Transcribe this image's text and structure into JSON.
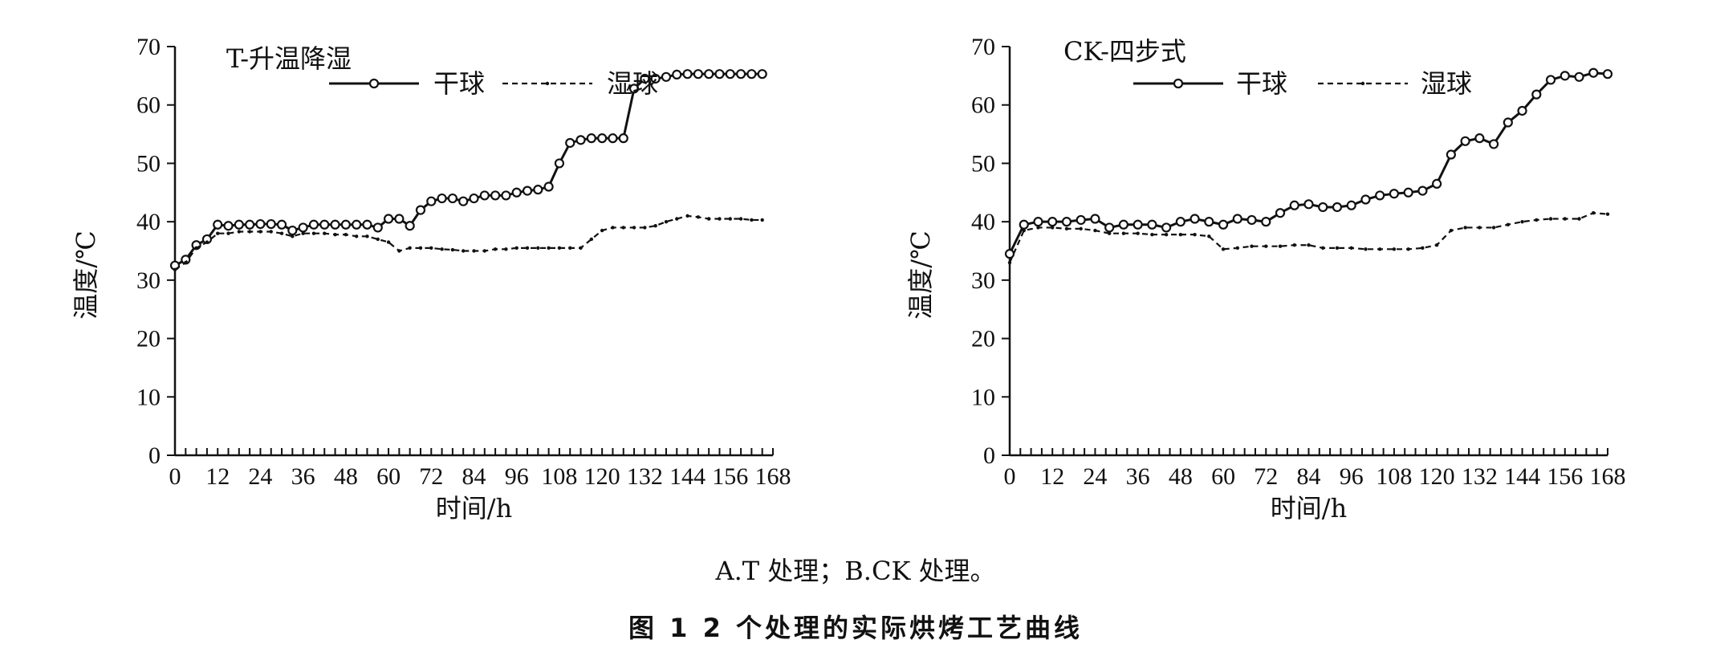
{
  "chart_data": [
    {
      "type": "line",
      "title": "T-升温降湿",
      "xlabel": "时间/h",
      "ylabel": "温度/℃",
      "xlim": [
        0,
        168
      ],
      "ylim": [
        0,
        70
      ],
      "xticks": [
        0,
        12,
        24,
        36,
        48,
        60,
        72,
        84,
        96,
        108,
        120,
        132,
        144,
        156,
        168
      ],
      "yticks": [
        0,
        10,
        20,
        30,
        40,
        50,
        60,
        70
      ],
      "legend_position": "top",
      "series": [
        {
          "name": "干球",
          "style": "solid-circle",
          "x": [
            0,
            3,
            6,
            9,
            12,
            15,
            18,
            21,
            24,
            27,
            30,
            33,
            36,
            39,
            42,
            45,
            48,
            51,
            54,
            57,
            60,
            63,
            66,
            69,
            72,
            75,
            78,
            81,
            84,
            87,
            90,
            93,
            96,
            99,
            102,
            105,
            108,
            111,
            114,
            117,
            120,
            123,
            126,
            129,
            132,
            135,
            138,
            141,
            144,
            147,
            150,
            153,
            156,
            159,
            162,
            165
          ],
          "y": [
            32.5,
            33.5,
            36,
            37,
            39.5,
            39.3,
            39.5,
            39.5,
            39.6,
            39.6,
            39.5,
            38.5,
            39,
            39.5,
            39.5,
            39.5,
            39.5,
            39.5,
            39.5,
            39,
            40.5,
            40.5,
            39.3,
            42,
            43.5,
            44,
            44,
            43.5,
            44,
            44.5,
            44.5,
            44.5,
            45,
            45.3,
            45.5,
            46,
            50,
            53.5,
            54,
            54.3,
            54.3,
            54.3,
            54.3,
            62.8,
            64.5,
            64.5,
            64.8,
            65.2,
            65.3,
            65.3,
            65.3,
            65.3,
            65.3,
            65.3,
            65.3,
            65.3
          ]
        },
        {
          "name": "湿球",
          "style": "dashed",
          "x": [
            0,
            3,
            6,
            9,
            12,
            15,
            18,
            21,
            24,
            27,
            30,
            33,
            36,
            39,
            42,
            45,
            48,
            51,
            54,
            57,
            60,
            63,
            66,
            69,
            72,
            75,
            78,
            81,
            84,
            87,
            90,
            93,
            96,
            99,
            102,
            105,
            108,
            111,
            114,
            117,
            120,
            123,
            126,
            129,
            132,
            135,
            138,
            141,
            144,
            147,
            150,
            153,
            156,
            159,
            162,
            165
          ],
          "y": [
            31.8,
            33,
            35.5,
            36.5,
            38,
            38,
            38.3,
            38.3,
            38.3,
            38.3,
            38,
            37.5,
            38,
            38,
            38,
            37.8,
            37.8,
            37.5,
            37.5,
            37,
            36.5,
            35,
            35.5,
            35.5,
            35.5,
            35.3,
            35.2,
            35,
            35,
            35,
            35.3,
            35.3,
            35.5,
            35.5,
            35.5,
            35.5,
            35.5,
            35.5,
            35.5,
            37,
            38.5,
            39,
            39,
            39,
            39,
            39.3,
            40,
            40.5,
            41,
            40.8,
            40.5,
            40.5,
            40.5,
            40.5,
            40.3,
            40.3
          ]
        }
      ]
    },
    {
      "type": "line",
      "title": "CK-四步式",
      "xlabel": "时间/h",
      "ylabel": "温度/℃",
      "xlim": [
        0,
        168
      ],
      "ylim": [
        0,
        70
      ],
      "xticks": [
        0,
        12,
        24,
        36,
        48,
        60,
        72,
        84,
        96,
        108,
        120,
        132,
        144,
        156,
        168
      ],
      "yticks": [
        0,
        10,
        20,
        30,
        40,
        50,
        60,
        70
      ],
      "legend_position": "top",
      "series": [
        {
          "name": "干球",
          "style": "solid-circle",
          "x": [
            0,
            4,
            8,
            12,
            16,
            20,
            24,
            28,
            32,
            36,
            40,
            44,
            48,
            52,
            56,
            60,
            64,
            68,
            72,
            76,
            80,
            84,
            88,
            92,
            96,
            100,
            104,
            108,
            112,
            116,
            120,
            124,
            128,
            132,
            136,
            140,
            144,
            148,
            152,
            156,
            160,
            164,
            168
          ],
          "y": [
            34.5,
            39.5,
            40,
            40,
            40,
            40.3,
            40.5,
            39,
            39.5,
            39.5,
            39.5,
            39,
            40,
            40.5,
            40,
            39.5,
            40.5,
            40.3,
            40,
            41.5,
            42.8,
            43,
            42.5,
            42.5,
            42.8,
            43.8,
            44.5,
            44.8,
            45,
            45.3,
            46.5,
            51.5,
            53.8,
            54.3,
            53.3,
            57,
            59,
            61.8,
            64.3,
            65,
            64.8,
            65.5,
            65.3
          ]
        },
        {
          "name": "湿球",
          "style": "dashed",
          "x": [
            0,
            4,
            8,
            12,
            16,
            20,
            24,
            28,
            32,
            36,
            40,
            44,
            48,
            52,
            56,
            60,
            64,
            68,
            72,
            76,
            80,
            84,
            88,
            92,
            96,
            100,
            104,
            108,
            112,
            116,
            120,
            124,
            128,
            132,
            136,
            140,
            144,
            148,
            152,
            156,
            160,
            164,
            168
          ],
          "y": [
            33,
            38.5,
            39,
            39,
            38.8,
            38.8,
            38.5,
            38,
            38,
            38,
            37.8,
            37.8,
            37.8,
            37.8,
            37.5,
            35.3,
            35.5,
            35.8,
            35.8,
            35.8,
            36,
            36,
            35.5,
            35.5,
            35.5,
            35.3,
            35.3,
            35.3,
            35.3,
            35.5,
            36,
            38.5,
            39,
            39,
            39,
            39.5,
            40,
            40.3,
            40.5,
            40.5,
            40.5,
            41.5,
            41.3
          ]
        }
      ]
    }
  ],
  "caption": "A.T 处理；B.CK 处理。",
  "figure_title": "图 1   2 个处理的实际烘烤工艺曲线"
}
